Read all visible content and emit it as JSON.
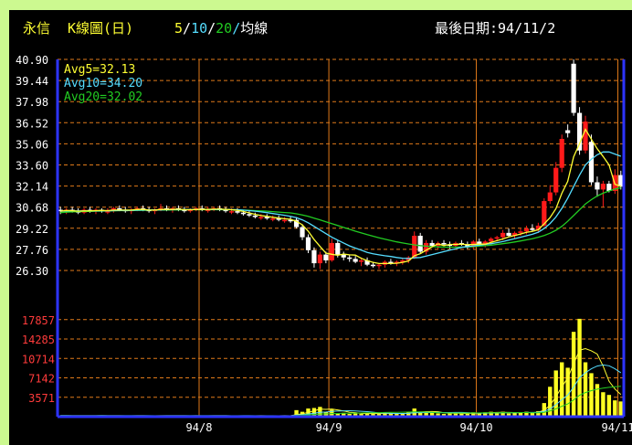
{
  "header": {
    "stock": "永信",
    "chart_kind": "K線圖(日)",
    "ma_periods": [
      "5",
      "10",
      "20"
    ],
    "ma_label": "均線",
    "last_date_label": "最後日期:94/11/2"
  },
  "legend": {
    "avg5": "Avg5=32.13",
    "avg10": "Avg10=34.20",
    "avg20": "Avg20=32.02"
  },
  "colors": {
    "background": "#000000",
    "outer": "#ccf990",
    "grid": "#e07a1a",
    "axis": "#2d34ff",
    "price_tick": "#ffffff",
    "volume_tick": "#ff3b3b",
    "up_candle": "#ff1a1a",
    "down_candle": "#ffffff",
    "avg5": "#ffff33",
    "avg10": "#55ddff",
    "avg20": "#22cc22",
    "volume_bar": "#ffff22"
  },
  "chart_data": [
    {
      "type": "candlestick",
      "y_ticks": [
        "40.90",
        "39.44",
        "37.98",
        "36.52",
        "35.06",
        "33.60",
        "32.14",
        "30.68",
        "29.22",
        "27.76",
        "26.30"
      ],
      "ylim": [
        26.3,
        40.9
      ],
      "x_ticks": [
        "94/8",
        "94/9",
        "94/10",
        "94/11"
      ],
      "series": [
        {
          "name": "Avg5",
          "last": 32.13
        },
        {
          "name": "Avg10",
          "last": 34.2
        },
        {
          "name": "Avg20",
          "last": 32.02
        }
      ],
      "ohlc": [
        [
          30.5,
          30.7,
          30.2,
          30.4
        ],
        [
          30.4,
          30.6,
          30.2,
          30.5
        ],
        [
          30.5,
          30.7,
          30.3,
          30.4
        ],
        [
          30.4,
          30.6,
          30.2,
          30.3
        ],
        [
          30.3,
          30.6,
          30.2,
          30.5
        ],
        [
          30.5,
          30.7,
          30.3,
          30.4
        ],
        [
          30.4,
          30.6,
          30.2,
          30.5
        ],
        [
          30.5,
          30.6,
          30.3,
          30.4
        ],
        [
          30.4,
          30.6,
          30.2,
          30.4
        ],
        [
          30.4,
          30.7,
          30.3,
          30.6
        ],
        [
          30.6,
          30.8,
          30.4,
          30.5
        ],
        [
          30.5,
          30.7,
          30.3,
          30.4
        ],
        [
          30.4,
          30.6,
          30.2,
          30.5
        ],
        [
          30.5,
          30.7,
          30.4,
          30.6
        ],
        [
          30.6,
          30.8,
          30.4,
          30.5
        ],
        [
          30.5,
          30.7,
          30.3,
          30.4
        ],
        [
          30.4,
          30.6,
          30.2,
          30.5
        ],
        [
          30.5,
          30.9,
          30.4,
          30.6
        ],
        [
          30.6,
          30.8,
          30.4,
          30.5
        ],
        [
          30.5,
          30.7,
          30.3,
          30.6
        ],
        [
          30.6,
          30.8,
          30.4,
          30.5
        ],
        [
          30.5,
          30.7,
          30.3,
          30.4
        ],
        [
          30.4,
          30.6,
          30.3,
          30.5
        ],
        [
          30.5,
          30.7,
          30.4,
          30.6
        ],
        [
          30.6,
          30.8,
          30.4,
          30.5
        ],
        [
          30.5,
          30.7,
          30.3,
          30.5
        ],
        [
          30.5,
          30.7,
          30.4,
          30.6
        ],
        [
          30.6,
          30.8,
          30.4,
          30.5
        ],
        [
          30.5,
          30.7,
          30.3,
          30.4
        ],
        [
          30.4,
          30.6,
          30.2,
          30.4
        ],
        [
          30.4,
          30.6,
          30.2,
          30.3
        ],
        [
          30.3,
          30.5,
          30.1,
          30.2
        ],
        [
          30.2,
          30.4,
          30.0,
          30.1
        ],
        [
          30.1,
          30.3,
          29.9,
          30.0
        ],
        [
          30.0,
          30.2,
          29.8,
          30.0
        ],
        [
          30.0,
          30.2,
          29.8,
          29.9
        ],
        [
          29.9,
          30.1,
          29.7,
          29.9
        ],
        [
          29.9,
          30.1,
          29.7,
          29.8
        ],
        [
          29.8,
          30.0,
          29.6,
          29.8
        ],
        [
          29.8,
          30.0,
          29.6,
          29.7
        ],
        [
          29.8,
          30.0,
          29.2,
          29.3
        ],
        [
          29.3,
          29.5,
          28.4,
          28.6
        ],
        [
          28.6,
          28.8,
          27.5,
          27.7
        ],
        [
          27.7,
          27.9,
          26.5,
          26.8
        ],
        [
          26.8,
          27.6,
          26.4,
          27.4
        ],
        [
          27.4,
          27.6,
          26.8,
          27.0
        ],
        [
          27.0,
          28.5,
          26.9,
          28.2
        ],
        [
          28.2,
          28.4,
          27.2,
          27.4
        ],
        [
          27.4,
          27.6,
          27.0,
          27.2
        ],
        [
          27.2,
          27.4,
          26.9,
          27.1
        ],
        [
          27.1,
          27.3,
          26.8,
          26.9
        ],
        [
          26.9,
          27.2,
          26.6,
          27.0
        ],
        [
          27.0,
          27.2,
          26.6,
          26.7
        ],
        [
          26.7,
          26.9,
          26.5,
          26.6
        ],
        [
          26.6,
          26.8,
          26.4,
          26.7
        ],
        [
          26.7,
          27.0,
          26.5,
          26.9
        ],
        [
          26.9,
          27.1,
          26.7,
          26.8
        ],
        [
          26.8,
          27.0,
          26.6,
          26.9
        ],
        [
          26.9,
          27.1,
          26.7,
          27.0
        ],
        [
          27.0,
          27.3,
          26.8,
          27.2
        ],
        [
          27.2,
          29.0,
          27.1,
          28.7
        ],
        [
          28.7,
          28.9,
          27.5,
          27.6
        ],
        [
          27.6,
          28.4,
          27.4,
          28.2
        ],
        [
          28.2,
          28.4,
          27.9,
          28.0
        ],
        [
          28.0,
          28.3,
          27.8,
          28.2
        ],
        [
          28.2,
          28.4,
          28.0,
          28.1
        ],
        [
          28.1,
          28.3,
          27.8,
          28.0
        ],
        [
          28.0,
          28.3,
          27.9,
          28.2
        ],
        [
          28.2,
          28.4,
          28.0,
          28.1
        ],
        [
          28.1,
          28.3,
          27.8,
          27.9
        ],
        [
          27.9,
          28.4,
          27.8,
          28.3
        ],
        [
          28.3,
          28.5,
          28.0,
          28.1
        ],
        [
          28.1,
          28.4,
          27.9,
          28.3
        ],
        [
          28.3,
          28.6,
          28.1,
          28.5
        ],
        [
          28.5,
          28.7,
          28.3,
          28.6
        ],
        [
          28.6,
          29.1,
          28.4,
          28.9
        ],
        [
          28.9,
          29.2,
          28.6,
          28.7
        ],
        [
          28.7,
          29.0,
          28.5,
          28.9
        ],
        [
          28.9,
          29.2,
          28.7,
          29.0
        ],
        [
          29.0,
          29.4,
          28.8,
          29.2
        ],
        [
          29.2,
          29.5,
          29.0,
          29.1
        ],
        [
          29.1,
          29.6,
          28.9,
          29.4
        ],
        [
          29.4,
          31.3,
          29.3,
          31.1
        ],
        [
          31.1,
          32.2,
          30.9,
          31.7
        ],
        [
          31.7,
          33.8,
          31.5,
          33.4
        ],
        [
          33.4,
          35.7,
          33.1,
          35.4
        ],
        [
          36.0,
          36.4,
          35.5,
          35.8
        ],
        [
          40.6,
          40.9,
          37.0,
          37.2
        ],
        [
          37.2,
          37.6,
          34.3,
          34.6
        ],
        [
          34.6,
          37.0,
          34.4,
          36.6
        ],
        [
          35.2,
          35.7,
          32.2,
          32.4
        ],
        [
          32.4,
          32.8,
          31.4,
          31.9
        ],
        [
          31.9,
          32.5,
          30.7,
          32.3
        ],
        [
          32.3,
          32.5,
          31.7,
          31.8
        ],
        [
          31.8,
          33.3,
          31.6,
          32.9
        ],
        [
          32.9,
          33.2,
          31.9,
          32.1
        ]
      ],
      "avg5": [
        30.4,
        30.45,
        30.43,
        30.4,
        30.42,
        30.42,
        30.44,
        30.45,
        30.44,
        30.48,
        30.48,
        30.48,
        30.48,
        30.52,
        30.52,
        30.48,
        30.48,
        30.52,
        30.52,
        30.52,
        30.54,
        30.5,
        30.5,
        30.52,
        30.52,
        30.52,
        30.54,
        30.54,
        30.52,
        30.5,
        30.46,
        30.38,
        30.28,
        30.18,
        30.1,
        30.04,
        29.98,
        29.92,
        29.88,
        29.84,
        29.7,
        29.46,
        29.02,
        28.44,
        27.96,
        27.5,
        27.42,
        27.35,
        27.44,
        27.38,
        27.36,
        27.14,
        26.98,
        26.86,
        26.78,
        26.78,
        26.78,
        26.8,
        26.86,
        26.96,
        27.32,
        27.46,
        27.7,
        27.94,
        28.14,
        28.02,
        28.1,
        28.1,
        28.12,
        28.08,
        28.1,
        28.12,
        28.12,
        28.24,
        28.36,
        28.48,
        28.62,
        28.72,
        28.82,
        28.94,
        29.0,
        29.12,
        29.52,
        29.96,
        30.58,
        31.64,
        32.46,
        34.16,
        35.08,
        36.06,
        35.38,
        34.72,
        34.18,
        33.6,
        32.26,
        32.13
      ],
      "avg10": [
        30.4,
        30.42,
        30.42,
        30.42,
        30.42,
        30.42,
        30.43,
        30.43,
        30.43,
        30.44,
        30.45,
        30.45,
        30.46,
        30.47,
        30.48,
        30.48,
        30.49,
        30.49,
        30.5,
        30.5,
        30.51,
        30.51,
        30.51,
        30.52,
        30.52,
        30.52,
        30.52,
        30.52,
        30.52,
        30.51,
        30.5,
        30.47,
        30.44,
        30.4,
        30.35,
        30.3,
        30.24,
        30.18,
        30.12,
        30.05,
        29.95,
        29.8,
        29.6,
        29.35,
        29.1,
        28.85,
        28.6,
        28.4,
        28.2,
        28.0,
        27.85,
        27.7,
        27.55,
        27.45,
        27.38,
        27.32,
        27.27,
        27.2,
        27.15,
        27.13,
        27.17,
        27.2,
        27.3,
        27.4,
        27.5,
        27.6,
        27.7,
        27.8,
        27.9,
        27.95,
        28.0,
        28.05,
        28.1,
        28.15,
        28.22,
        28.3,
        28.4,
        28.5,
        28.6,
        28.7,
        28.8,
        28.95,
        29.2,
        29.55,
        30.0,
        30.6,
        31.3,
        32.1,
        32.9,
        33.6,
        34.0,
        34.3,
        34.5,
        34.5,
        34.35,
        34.2
      ],
      "avg20": [
        30.3,
        30.33,
        30.35,
        30.37,
        30.38,
        30.39,
        30.4,
        30.41,
        30.42,
        30.43,
        30.44,
        30.44,
        30.45,
        30.46,
        30.46,
        30.47,
        30.47,
        30.48,
        30.48,
        30.49,
        30.49,
        30.5,
        30.5,
        30.5,
        30.5,
        30.5,
        30.5,
        30.5,
        30.5,
        30.5,
        30.49,
        30.48,
        30.46,
        30.44,
        30.42,
        30.4,
        30.37,
        30.34,
        30.31,
        30.28,
        30.22,
        30.14,
        30.04,
        29.92,
        29.8,
        29.67,
        29.54,
        29.41,
        29.28,
        29.15,
        29.02,
        28.9,
        28.78,
        28.67,
        28.56,
        28.46,
        28.37,
        28.28,
        28.2,
        28.13,
        28.07,
        28.02,
        27.98,
        27.95,
        27.93,
        27.92,
        27.91,
        27.91,
        27.92,
        27.93,
        27.95,
        27.98,
        28.01,
        28.05,
        28.1,
        28.15,
        28.21,
        28.27,
        28.34,
        28.42,
        28.5,
        28.6,
        28.72,
        28.88,
        29.08,
        29.35,
        29.7,
        30.1,
        30.5,
        30.9,
        31.2,
        31.45,
        31.65,
        31.8,
        31.93,
        32.02
      ]
    },
    {
      "type": "bar",
      "y_ticks": [
        "17857",
        "14285",
        "10714",
        "7142",
        "3571"
      ],
      "ylim": [
        0,
        20000
      ],
      "volume": [
        200,
        200,
        150,
        200,
        180,
        200,
        220,
        200,
        150,
        180,
        200,
        150,
        160,
        200,
        180,
        150,
        160,
        220,
        180,
        200,
        190,
        150,
        160,
        200,
        180,
        170,
        200,
        190,
        150,
        160,
        180,
        200,
        150,
        160,
        200,
        150,
        180,
        160,
        200,
        180,
        1200,
        900,
        1500,
        1600,
        1800,
        900,
        1300,
        600,
        700,
        500,
        600,
        500,
        700,
        600,
        500,
        700,
        600,
        500,
        600,
        800,
        1500,
        900,
        800,
        700,
        600,
        500,
        600,
        700,
        600,
        500,
        800,
        700,
        800,
        900,
        700,
        900,
        600,
        700,
        800,
        900,
        700,
        1000,
        2500,
        5500,
        8500,
        10000,
        9000,
        15600,
        18000,
        10000,
        8000,
        6000,
        4500,
        4000,
        3000,
        2800
      ]
    }
  ]
}
